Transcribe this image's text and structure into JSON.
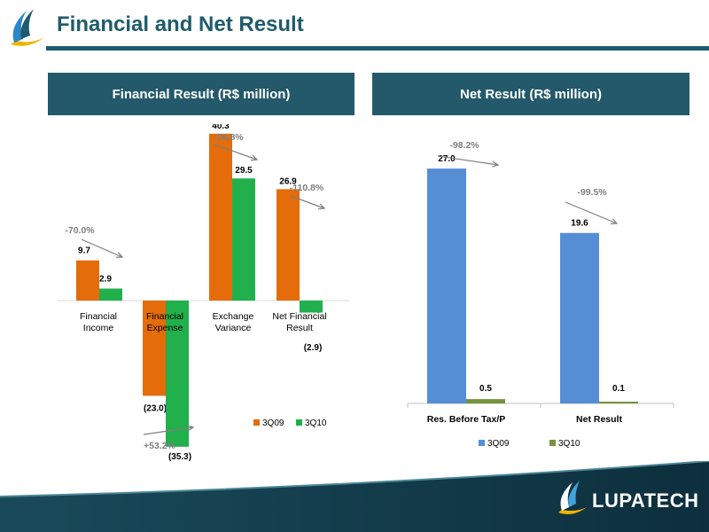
{
  "page": {
    "title": "Financial and Net Result",
    "brand": "LUPATECH"
  },
  "colors": {
    "header": "#23596a",
    "title": "#1f5b6c",
    "orange": "#e46c0a",
    "green": "#21b04b",
    "blue": "#558ed5",
    "olive": "#77933c",
    "note": "#7f7f7f"
  },
  "chart_data": [
    {
      "type": "bar",
      "title": "Financial Result (R$ million)",
      "categories": [
        "Financial Income",
        "Financial Expense",
        "Exchange Variance",
        "Net Financial Result"
      ],
      "category_lines": [
        [
          "Financial",
          "Income"
        ],
        [
          "Financial",
          "Expense"
        ],
        [
          "Exchange",
          "Variance"
        ],
        [
          "Net Financial",
          "Result"
        ]
      ],
      "series": [
        {
          "name": "3Q09",
          "color": "#e46c0a",
          "values": [
            9.7,
            -23.0,
            40.3,
            26.9
          ],
          "labels": [
            "9.7",
            "(23.0)",
            "40.3",
            "26.9"
          ]
        },
        {
          "name": "3Q10",
          "color": "#21b04b",
          "values": [
            2.9,
            -35.3,
            29.5,
            -2.9
          ],
          "labels": [
            "2.9",
            "(35.3)",
            "29.5",
            "(2.9)"
          ]
        }
      ],
      "annotations": [
        "-70.0%",
        "+53.2%",
        "-26.8%",
        "-110.8%"
      ],
      "legend": "bottom-right",
      "grid": false,
      "ylim": [
        -36,
        41
      ]
    },
    {
      "type": "bar",
      "title": "Net Result (R$ million)",
      "categories": [
        "Res. Before Tax/P",
        "Net Result"
      ],
      "series": [
        {
          "name": "3Q09",
          "color": "#558ed5",
          "values": [
            27.0,
            19.6
          ],
          "labels": [
            "27.0",
            "19.6"
          ]
        },
        {
          "name": "3Q10",
          "color": "#77933c",
          "values": [
            0.5,
            0.1
          ],
          "labels": [
            "0.5",
            "0.1"
          ]
        }
      ],
      "annotations": [
        "-98.2%",
        "-99.5%"
      ],
      "legend": "bottom-left",
      "grid": false,
      "ylim": [
        0,
        28
      ]
    }
  ]
}
